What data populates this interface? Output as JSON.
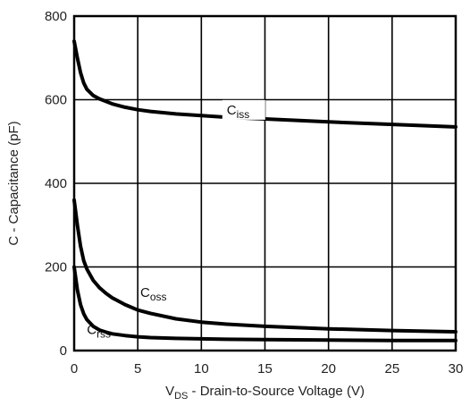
{
  "chart_data": {
    "type": "line",
    "title": "",
    "xlabel": {
      "main": "V",
      "sub": "DS",
      "rest": " - Drain-to-Source Voltage (V)"
    },
    "ylabel": "C - Capacitance (pF)",
    "xlim": [
      0,
      30
    ],
    "ylim": [
      0,
      800
    ],
    "xticks": [
      "0",
      "5",
      "10",
      "15",
      "20",
      "25",
      "30"
    ],
    "yticks": [
      "0",
      "200",
      "400",
      "600",
      "800"
    ],
    "grid": true,
    "legend": "none",
    "series": [
      {
        "name": "Ciss",
        "label": {
          "main": "C",
          "sub": "iss"
        },
        "x": [
          0,
          0.25,
          0.5,
          0.75,
          1,
          1.5,
          2,
          2.5,
          3,
          4,
          5,
          6,
          8,
          10,
          12,
          15,
          20,
          25,
          30
        ],
        "y": [
          740,
          700,
          665,
          640,
          625,
          610,
          602,
          596,
          590,
          582,
          576,
          572,
          566,
          562,
          558,
          554,
          547,
          541,
          535
        ]
      },
      {
        "name": "Coss",
        "label": {
          "main": "C",
          "sub": "oss"
        },
        "x": [
          0,
          0.25,
          0.5,
          0.75,
          1,
          1.5,
          2,
          2.5,
          3,
          4,
          5,
          6,
          8,
          10,
          12,
          15,
          20,
          25,
          30
        ],
        "y": [
          360,
          300,
          250,
          215,
          195,
          168,
          150,
          137,
          126,
          110,
          97,
          89,
          76,
          68,
          63,
          58,
          52,
          48,
          45
        ]
      },
      {
        "name": "Crss",
        "label": {
          "main": "C",
          "sub": "rss"
        },
        "x": [
          0,
          0.25,
          0.5,
          0.75,
          1,
          1.5,
          2,
          2.5,
          3,
          4,
          5,
          6,
          8,
          10,
          12,
          15,
          20,
          25,
          30
        ],
        "y": [
          200,
          145,
          110,
          88,
          74,
          58,
          49,
          44,
          40,
          36,
          33,
          31,
          29,
          28,
          27,
          26,
          25,
          24,
          24
        ]
      }
    ]
  }
}
